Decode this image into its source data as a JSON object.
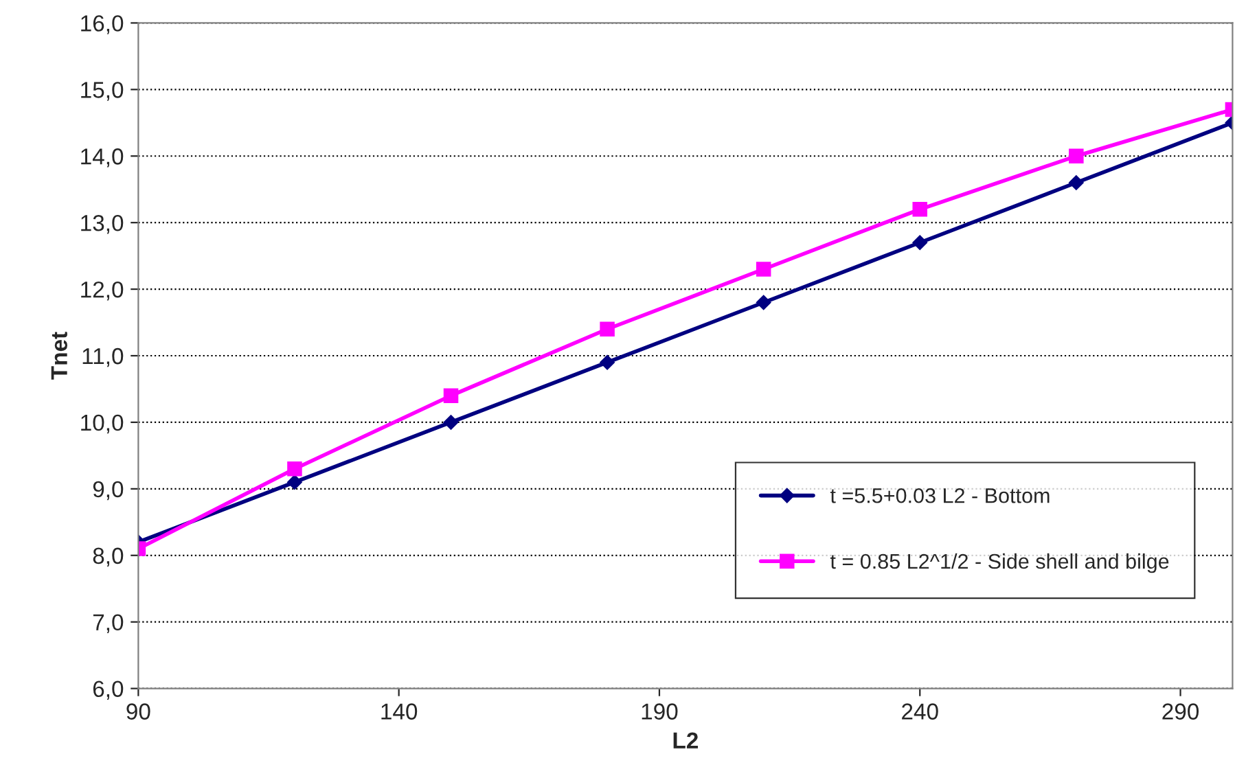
{
  "chart_data": {
    "type": "line",
    "xlabel": "L2",
    "ylabel": "Tnet",
    "x": [
      90,
      120,
      150,
      180,
      210,
      240,
      270,
      300
    ],
    "series": [
      {
        "name": "t =5.5+0.03 L2 - Bottom",
        "color": "#000080",
        "marker": "diamond",
        "values": [
          8.2,
          9.1,
          10.0,
          10.9,
          11.8,
          12.7,
          13.6,
          14.5
        ]
      },
      {
        "name": "t = 0.85 L2^1/2 - Side shell and bilge",
        "color": "#ff00ff",
        "marker": "square",
        "values": [
          8.1,
          9.3,
          10.4,
          11.4,
          12.3,
          13.2,
          14.0,
          14.7
        ]
      }
    ],
    "xlim": [
      90,
      300
    ],
    "xticks": [
      90,
      140,
      190,
      240,
      290
    ],
    "ylim": [
      6,
      16
    ],
    "yticks": [
      {
        "value": 6,
        "label": "6,0"
      },
      {
        "value": 7,
        "label": "7,0"
      },
      {
        "value": 8,
        "label": "8,0"
      },
      {
        "value": 9,
        "label": "9,0"
      },
      {
        "value": 10,
        "label": "10,0"
      },
      {
        "value": 11,
        "label": "11,0"
      },
      {
        "value": 12,
        "label": "12,0"
      },
      {
        "value": 13,
        "label": "13,0"
      },
      {
        "value": 14,
        "label": "14,0"
      },
      {
        "value": 15,
        "label": "15,0"
      },
      {
        "value": 16,
        "label": "16,0"
      }
    ],
    "grid": "y",
    "legend": "bottom right",
    "line_style": "solid"
  }
}
